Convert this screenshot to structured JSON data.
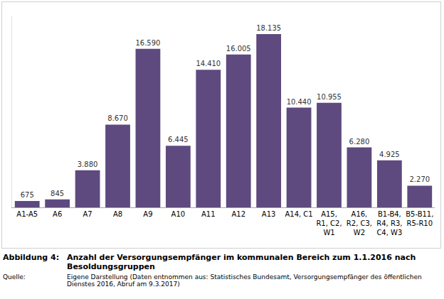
{
  "chart_data": {
    "type": "bar",
    "categories": [
      "A1-A5",
      "A6",
      "A7",
      "A8",
      "A9",
      "A10",
      "A11",
      "A12",
      "A13",
      "A14, C1",
      "A15, R1, C2, W1",
      "A16, R2, C3, W2",
      "B1-B4, R4, R3, C4, W3",
      "B5-B11, R5-R10"
    ],
    "values": [
      675,
      845,
      3880,
      8670,
      16590,
      6445,
      14410,
      16005,
      18135,
      10440,
      10955,
      6280,
      4925,
      2270
    ],
    "value_labels": [
      "675",
      "845",
      "3.880",
      "8.670",
      "16.590",
      "6.445",
      "14.410",
      "16.005",
      "18.135",
      "10.440",
      "10.955",
      "6.280",
      "4.925",
      "2.270"
    ],
    "color": "#5e4a7e",
    "ylim": [
      0,
      20000
    ],
    "data_labels": true,
    "tick_labels": "x",
    "grid": false
  },
  "caption": {
    "label": "Abbildung 4:",
    "title": "Anzahl der Versorgungsempfänger im kommunalen Bereich zum 1.1.2016 nach Besoldungsgruppen",
    "source_label": "Quelle:",
    "source": "Eigene Darstellung (Daten entnommen aus: Statistisches Bundesamt, Versorgungsempfänger des öffentlichen Dienstes 2016, Abruf am 9.3.2017)"
  }
}
